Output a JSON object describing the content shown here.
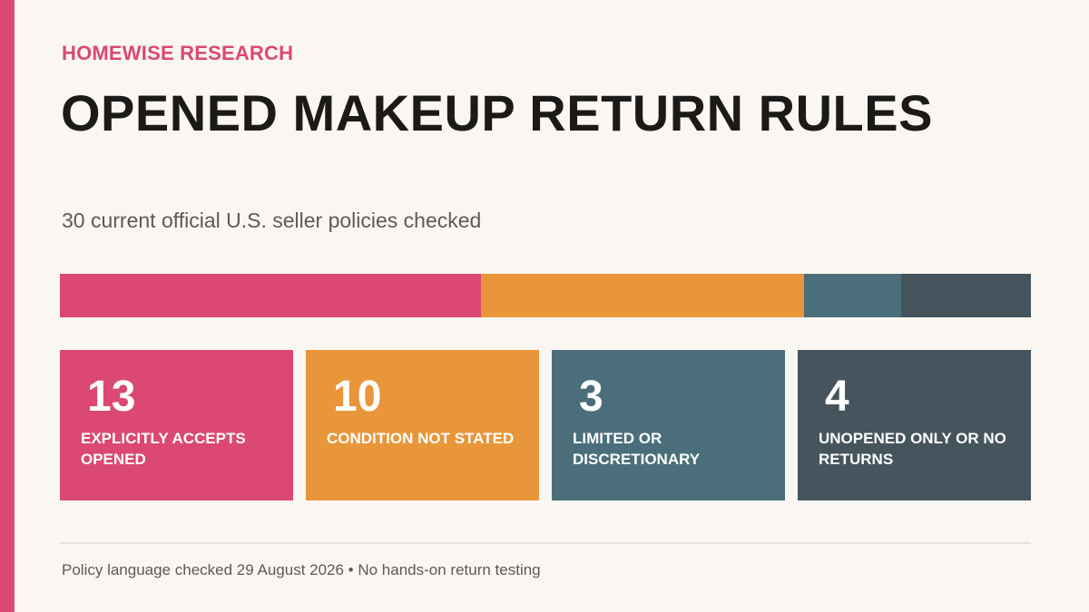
{
  "brand": {
    "accent": "#db4874"
  },
  "header": {
    "eyebrow": "HOMEWISE RESEARCH",
    "title": "OPENED MAKEUP RETURN RULES",
    "subtitle": "30 current official U.S. seller policies checked"
  },
  "chart_data": {
    "type": "bar",
    "orientation": "horizontal-stacked",
    "total": 30,
    "categories": [
      "Explicitly accepts opened",
      "Condition not stated",
      "Limited or discretionary",
      "Unopened only or no returns"
    ],
    "values": [
      13,
      10,
      3,
      4
    ],
    "colors": [
      "#db4874",
      "#e9963a",
      "#4a6f7a",
      "#45545d"
    ],
    "legend": "cards-below"
  },
  "cards": [
    {
      "value": "13",
      "label": "EXPLICITLY ACCEPTS OPENED",
      "color": "#db4874"
    },
    {
      "value": "10",
      "label": "CONDITION NOT STATED",
      "color": "#e9963a"
    },
    {
      "value": "3",
      "label": "LIMITED OR DISCRETIONARY",
      "color": "#4a6f7a"
    },
    {
      "value": "4",
      "label": "UNOPENED ONLY OR NO RETURNS",
      "color": "#45545d"
    }
  ],
  "footer": {
    "note": "Policy language checked 29 August 2026 • No hands-on return testing"
  }
}
